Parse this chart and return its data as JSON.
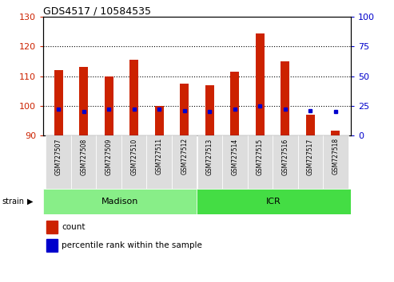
{
  "title": "GDS4517 / 10584535",
  "samples": [
    "GSM727507",
    "GSM727508",
    "GSM727509",
    "GSM727510",
    "GSM727511",
    "GSM727512",
    "GSM727513",
    "GSM727514",
    "GSM727515",
    "GSM727516",
    "GSM727517",
    "GSM727518"
  ],
  "count_values": [
    112,
    113,
    110,
    115.5,
    100,
    107.5,
    107,
    111.5,
    124.5,
    115,
    97,
    91.5
  ],
  "percentile_values": [
    22,
    20,
    22,
    22,
    22,
    21,
    20,
    22,
    25,
    22,
    21,
    20
  ],
  "baseline": 90,
  "ylim_left": [
    90,
    130
  ],
  "ylim_right": [
    0,
    100
  ],
  "yticks_left": [
    90,
    100,
    110,
    120,
    130
  ],
  "yticks_right": [
    0,
    25,
    50,
    75,
    100
  ],
  "grid_values": [
    100,
    110,
    120
  ],
  "bar_color": "#cc2200",
  "dot_color": "#0000cc",
  "n_madison": 6,
  "n_icr": 6,
  "madison_color": "#88ee88",
  "icr_color": "#44dd44",
  "strain_label": "strain",
  "legend_count_label": "count",
  "legend_pct_label": "percentile rank within the sample",
  "bar_width": 0.35
}
